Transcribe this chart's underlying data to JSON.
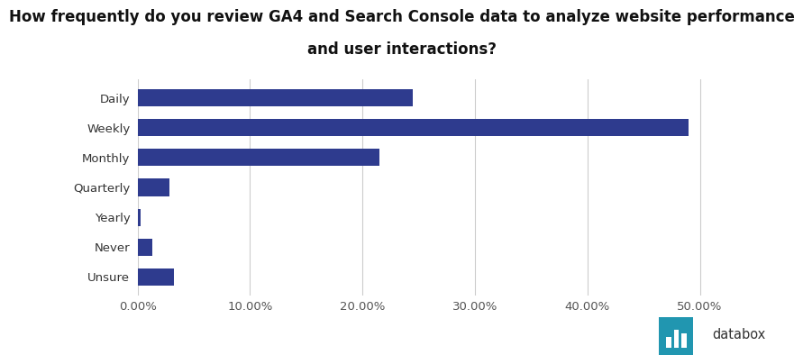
{
  "title_line1": "How frequently do you review GA4 and Search Console data to analyze website performance",
  "title_line2": "and user interactions?",
  "categories": [
    "Daily",
    "Weekly",
    "Monthly",
    "Quarterly",
    "Yearly",
    "Never",
    "Unsure"
  ],
  "values": [
    0.245,
    0.49,
    0.215,
    0.028,
    0.003,
    0.013,
    0.032
  ],
  "bar_color": "#2E3B8E",
  "background_color": "#ffffff",
  "xticks": [
    0.0,
    0.1,
    0.2,
    0.3,
    0.4,
    0.5
  ],
  "xtick_labels": [
    "0.00%",
    "10.00%",
    "20.00%",
    "30.00%",
    "40.00%",
    "50.00%"
  ],
  "xlim": [
    0,
    0.545
  ],
  "title_fontsize": 12,
  "tick_fontsize": 9.5,
  "bar_height": 0.58,
  "grid_color": "#cccccc",
  "databox_text": "databox",
  "databox_icon_color": "#2196b0",
  "databox_text_color": "#333333"
}
